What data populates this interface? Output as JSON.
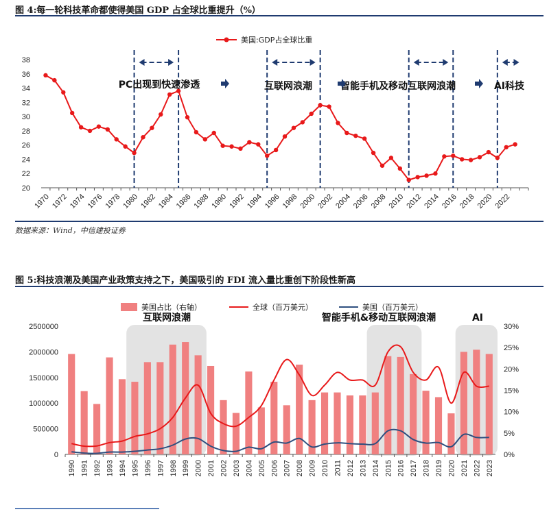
{
  "figure4": {
    "title": "图 4:每一轮科技革命都使得美国 GDP 占全球比重提升（%）",
    "source": "数据来源：Wind，中信建投证券"
  },
  "figure5": {
    "title": "图 5:科技浪潮及美国产业政策支持之下，美国吸引的 FDI 流入量比重创下阶段性新高"
  },
  "colors": {
    "red": "#e8191a",
    "pink": "#f08080",
    "navy": "#2e4f7f",
    "rule": "#1f3b70",
    "band": "#e3e3e3"
  },
  "chart_data": [
    {
      "type": "line",
      "legend": "美国:GDP占全球比重",
      "legend_position": "top-center",
      "ylim": [
        20,
        38
      ],
      "yticks": [
        20,
        22,
        24,
        26,
        28,
        30,
        32,
        34,
        36,
        38
      ],
      "xticks": [
        "1970",
        "1972",
        "1974",
        "1976",
        "1978",
        "1980",
        "1982",
        "1984",
        "1986",
        "1988",
        "1990",
        "1992",
        "1994",
        "1996",
        "1998",
        "2000",
        "2002",
        "2004",
        "2006",
        "2008",
        "2010",
        "2012",
        "2014",
        "2016",
        "2018",
        "2020",
        "2022"
      ],
      "x": [
        1970,
        1971,
        1972,
        1973,
        1974,
        1975,
        1976,
        1977,
        1978,
        1979,
        1980,
        1981,
        1982,
        1983,
        1984,
        1985,
        1986,
        1987,
        1988,
        1989,
        1990,
        1991,
        1992,
        1993,
        1994,
        1995,
        1996,
        1997,
        1998,
        1999,
        2000,
        2001,
        2002,
        2003,
        2004,
        2005,
        2006,
        2007,
        2008,
        2009,
        2010,
        2011,
        2012,
        2013,
        2014,
        2015,
        2016,
        2017,
        2018,
        2019,
        2020,
        2021,
        2022,
        2023
      ],
      "values": [
        35.8,
        35.1,
        33.4,
        30.5,
        28.5,
        28.0,
        28.6,
        28.2,
        26.8,
        25.8,
        24.9,
        27.1,
        28.4,
        30.3,
        33.1,
        33.6,
        29.9,
        27.8,
        26.8,
        27.7,
        25.9,
        25.8,
        25.5,
        26.4,
        26.1,
        24.5,
        25.3,
        27.2,
        28.4,
        29.2,
        30.4,
        31.6,
        31.4,
        29.1,
        27.7,
        27.3,
        26.9,
        24.9,
        23.1,
        24.2,
        22.7,
        21.1,
        21.5,
        21.7,
        22.0,
        24.4,
        24.5,
        24.0,
        23.9,
        24.3,
        25.0,
        24.2,
        25.7,
        26.1
      ],
      "marker_lines": [
        1980,
        1985,
        1995,
        2001,
        2011,
        2016,
        2021
      ],
      "annotations": [
        {
          "text": "PC出现到快速渗透",
          "from": 1980,
          "to": 1985
        },
        {
          "text": "互联网浪潮",
          "from": 1995,
          "to": 2001
        },
        {
          "text": "智能手机及移动互联网浪潮",
          "from": 2011,
          "to": 2016
        },
        {
          "text": "AI科技",
          "from": 2021,
          "to": 2024
        }
      ],
      "grid": false
    },
    {
      "type": "bar+line",
      "categories": [
        "1990",
        "1991",
        "1992",
        "1993",
        "1994",
        "1995",
        "1996",
        "1997",
        "1998",
        "1999",
        "2000",
        "2001",
        "2002",
        "2003",
        "2004",
        "2005",
        "2006",
        "2007",
        "2008",
        "2009",
        "2010",
        "2011",
        "2012",
        "2013",
        "2014",
        "2015",
        "2016",
        "2017",
        "2018",
        "2019",
        "2020",
        "2021",
        "2022",
        "2023"
      ],
      "left_yticks": [
        "0",
        "500000",
        "1000000",
        "1500000",
        "2000000",
        "2500000"
      ],
      "right_yticks": [
        "0%",
        "5%",
        "10%",
        "15%",
        "20%",
        "25%",
        "30%"
      ],
      "left_ylim": [
        0,
        2500000
      ],
      "right_ylim": [
        0,
        30
      ],
      "legend_position": "top-center",
      "series": [
        {
          "name": "美国占比（右轴）",
          "type": "bar",
          "axis": "right",
          "values": [
            23.5,
            14.8,
            11.8,
            22.7,
            17.6,
            17.0,
            21.6,
            21.6,
            25.7,
            26.3,
            23.2,
            20.7,
            12.7,
            9.7,
            19.4,
            11.0,
            17.0,
            11.5,
            21.0,
            12.7,
            14.5,
            14.5,
            13.8,
            13.8,
            14.5,
            23.0,
            22.8,
            18.8,
            14.9,
            13.4,
            9.6,
            24.0,
            24.5,
            23.5
          ]
        },
        {
          "name": "全球（百万美元）",
          "type": "line",
          "axis": "left",
          "values": [
            210000,
            160000,
            165000,
            230000,
            260000,
            350000,
            400000,
            500000,
            720000,
            1100000,
            1350000,
            800000,
            600000,
            550000,
            720000,
            950000,
            1450000,
            1850000,
            1550000,
            1150000,
            1350000,
            1600000,
            1450000,
            1450000,
            1350000,
            2000000,
            2100000,
            1600000,
            1450000,
            1700000,
            1000000,
            1600000,
            1330000,
            1330000
          ]
        },
        {
          "name": "美国（百万美元）",
          "type": "line",
          "axis": "left",
          "values": [
            50000,
            25000,
            20000,
            45000,
            45000,
            60000,
            85000,
            110000,
            180000,
            300000,
            310000,
            160000,
            75000,
            60000,
            140000,
            110000,
            240000,
            220000,
            310000,
            145000,
            200000,
            225000,
            210000,
            200000,
            210000,
            460000,
            460000,
            290000,
            220000,
            230000,
            150000,
            390000,
            330000,
            330000
          ]
        }
      ],
      "bands": [
        {
          "text": "互联网浪潮",
          "from": "1995",
          "to": "2000"
        },
        {
          "text": "智能手机&移动互联网浪潮",
          "from": "2014",
          "to": "2017"
        },
        {
          "text": "AI",
          "from": "2021",
          "to": "2023"
        }
      ],
      "grid": false
    }
  ]
}
